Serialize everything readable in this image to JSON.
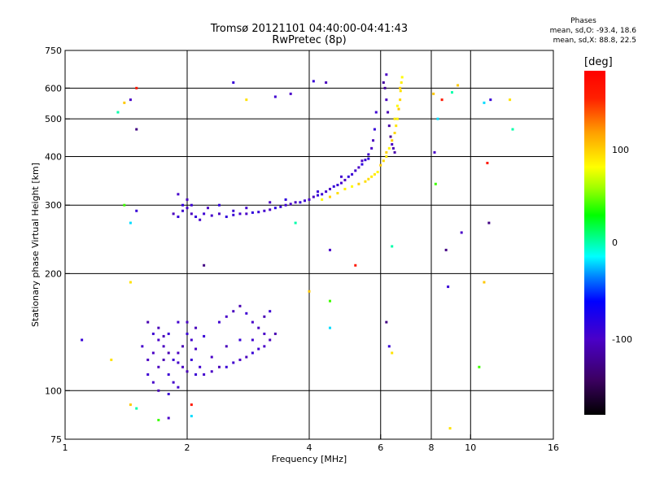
{
  "chart_data": {
    "type": "scatter",
    "title": "Tromsø 20121101 04:40:00-04:41:43",
    "subtitle": "RwPretec (8p)",
    "xlabel": "Frequency [MHz]",
    "ylabel": "Stationary phase Virtual Height [km]",
    "x_scale": "log",
    "y_scale": "log",
    "xlim": [
      1,
      16
    ],
    "ylim": [
      75,
      750
    ],
    "x_ticks": [
      1,
      2,
      4,
      6,
      8,
      10,
      16
    ],
    "y_ticks": [
      75,
      100,
      200,
      300,
      400,
      500,
      600,
      750
    ],
    "x_gridlines": [
      2,
      4,
      6,
      8,
      10
    ],
    "y_gridlines": [
      100,
      200,
      300,
      400,
      500,
      600
    ],
    "grid": true,
    "colorbar": {
      "label": "[deg]",
      "range": [
        -180,
        180
      ],
      "ticks": [
        100,
        0,
        -100
      ]
    },
    "phases": {
      "title": "Phases",
      "line_o": "mean, sd,O: -93.4, 18.6",
      "line_x": "mean, sd,X: 88.8, 22.5"
    },
    "series": [
      {
        "description": "F-layer O trace (blue/purple, phase ≈ -100°)",
        "phase_deg": -95,
        "points": [
          [
            1.85,
            285
          ],
          [
            1.9,
            280
          ],
          [
            1.95,
            290
          ],
          [
            2.0,
            295
          ],
          [
            2.05,
            285
          ],
          [
            2.1,
            280
          ],
          [
            2.2,
            285
          ],
          [
            2.3,
            282
          ],
          [
            2.4,
            285
          ],
          [
            2.5,
            280
          ],
          [
            2.6,
            283
          ],
          [
            2.7,
            285
          ],
          [
            2.8,
            285
          ],
          [
            2.9,
            287
          ],
          [
            3.0,
            288
          ],
          [
            3.1,
            290
          ],
          [
            3.2,
            292
          ],
          [
            3.3,
            295
          ],
          [
            3.4,
            297
          ],
          [
            3.5,
            300
          ],
          [
            3.6,
            302
          ],
          [
            3.7,
            305
          ],
          [
            3.8,
            305
          ],
          [
            3.9,
            308
          ],
          [
            4.0,
            310
          ],
          [
            4.1,
            315
          ],
          [
            4.2,
            318
          ],
          [
            4.3,
            320
          ],
          [
            4.4,
            325
          ],
          [
            4.5,
            330
          ],
          [
            4.6,
            335
          ],
          [
            4.7,
            338
          ],
          [
            4.8,
            342
          ],
          [
            4.9,
            348
          ],
          [
            5.0,
            355
          ],
          [
            5.1,
            360
          ],
          [
            5.2,
            368
          ],
          [
            5.3,
            375
          ],
          [
            5.4,
            382
          ],
          [
            5.5,
            392
          ],
          [
            5.6,
            405
          ],
          [
            5.7,
            420
          ],
          [
            5.75,
            440
          ],
          [
            5.8,
            470
          ],
          [
            5.85,
            520
          ],
          [
            1.9,
            320
          ],
          [
            2.0,
            310
          ],
          [
            1.95,
            300
          ],
          [
            2.05,
            300
          ],
          [
            2.15,
            275
          ],
          [
            2.25,
            295
          ],
          [
            2.4,
            300
          ],
          [
            2.6,
            290
          ],
          [
            2.8,
            295
          ],
          [
            3.2,
            305
          ],
          [
            3.5,
            310
          ],
          [
            4.2,
            325
          ],
          [
            4.8,
            355
          ],
          [
            5.4,
            390
          ],
          [
            5.6,
            395
          ],
          [
            4.1,
            625
          ],
          [
            3.3,
            570
          ],
          [
            3.6,
            580
          ],
          [
            4.4,
            620
          ]
        ]
      },
      {
        "description": "F-layer X trace (yellow/orange, phase ≈ +90°)",
        "phase_deg": 90,
        "points": [
          [
            4.3,
            310
          ],
          [
            4.5,
            315
          ],
          [
            4.7,
            322
          ],
          [
            4.9,
            330
          ],
          [
            5.1,
            335
          ],
          [
            5.3,
            340
          ],
          [
            5.5,
            345
          ],
          [
            5.7,
            355
          ],
          [
            5.9,
            365
          ],
          [
            6.0,
            380
          ],
          [
            6.1,
            390
          ],
          [
            6.2,
            400
          ],
          [
            6.3,
            420
          ],
          [
            6.4,
            440
          ],
          [
            6.5,
            460
          ],
          [
            6.55,
            480
          ],
          [
            6.6,
            500
          ],
          [
            6.65,
            530
          ],
          [
            6.7,
            560
          ],
          [
            6.72,
            590
          ],
          [
            6.75,
            620
          ],
          [
            6.78,
            640
          ],
          [
            6.2,
            410
          ],
          [
            6.35,
            450
          ],
          [
            6.5,
            500
          ],
          [
            6.6,
            540
          ],
          [
            6.7,
            600
          ],
          [
            5.6,
            350
          ],
          [
            5.8,
            360
          ]
        ]
      },
      {
        "description": "F-layer O upper branch near 6.2-6.5 MHz (purple)",
        "phase_deg": -110,
        "points": [
          [
            6.15,
            600
          ],
          [
            6.2,
            560
          ],
          [
            6.25,
            520
          ],
          [
            6.3,
            480
          ],
          [
            6.35,
            450
          ],
          [
            6.4,
            430
          ],
          [
            6.45,
            420
          ],
          [
            6.5,
            410
          ],
          [
            6.1,
            620
          ],
          [
            6.2,
            650
          ]
        ]
      },
      {
        "description": "E-layer cluster (blue)",
        "phase_deg": -100,
        "points": [
          [
            1.6,
            150
          ],
          [
            1.65,
            140
          ],
          [
            1.7,
            135
          ],
          [
            1.75,
            130
          ],
          [
            1.8,
            125
          ],
          [
            1.85,
            120
          ],
          [
            1.9,
            118
          ],
          [
            1.95,
            115
          ],
          [
            2.0,
            112
          ],
          [
            2.1,
            110
          ],
          [
            2.2,
            110
          ],
          [
            2.3,
            112
          ],
          [
            2.4,
            115
          ],
          [
            2.5,
            115
          ],
          [
            2.6,
            118
          ],
          [
            2.7,
            120
          ],
          [
            2.8,
            122
          ],
          [
            2.9,
            125
          ],
          [
            3.0,
            128
          ],
          [
            3.1,
            130
          ],
          [
            3.2,
            135
          ],
          [
            3.3,
            140
          ],
          [
            1.6,
            110
          ],
          [
            1.65,
            105
          ],
          [
            1.7,
            115
          ],
          [
            1.75,
            120
          ],
          [
            1.8,
            110
          ],
          [
            1.85,
            105
          ],
          [
            1.9,
            125
          ],
          [
            1.95,
            130
          ],
          [
            2.0,
            140
          ],
          [
            2.05,
            135
          ],
          [
            2.1,
            128
          ],
          [
            1.7,
            145
          ],
          [
            1.8,
            140
          ],
          [
            1.9,
            150
          ],
          [
            2.0,
            150
          ],
          [
            2.1,
            145
          ],
          [
            2.2,
            138
          ],
          [
            2.4,
            150
          ],
          [
            2.5,
            155
          ],
          [
            2.6,
            160
          ],
          [
            2.7,
            165
          ],
          [
            2.8,
            158
          ],
          [
            2.9,
            150
          ],
          [
            3.0,
            145
          ],
          [
            3.1,
            155
          ],
          [
            3.2,
            160
          ],
          [
            1.55,
            130
          ],
          [
            1.6,
            120
          ],
          [
            1.7,
            100
          ],
          [
            1.8,
            98
          ],
          [
            1.9,
            102
          ],
          [
            1.65,
            125
          ],
          [
            1.75,
            138
          ],
          [
            2.05,
            120
          ],
          [
            2.15,
            115
          ],
          [
            2.3,
            122
          ],
          [
            2.5,
            130
          ],
          [
            2.7,
            135
          ],
          [
            2.9,
            135
          ],
          [
            3.1,
            140
          ]
        ]
      },
      {
        "description": "scattered background points (various phases)",
        "phase_deg": null,
        "points": [
          [
            1.1,
            135
          ],
          [
            1.3,
            120
          ],
          [
            1.35,
            520
          ],
          [
            1.4,
            550
          ],
          [
            1.45,
            560
          ],
          [
            1.4,
            300
          ],
          [
            1.45,
            270
          ],
          [
            1.5,
            600
          ],
          [
            1.5,
            470
          ],
          [
            1.5,
            290
          ],
          [
            1.45,
            190
          ],
          [
            1.5,
            90
          ],
          [
            1.45,
            92
          ],
          [
            1.8,
            85
          ],
          [
            1.7,
            84
          ],
          [
            2.05,
            86
          ],
          [
            2.05,
            92
          ],
          [
            2.2,
            210
          ],
          [
            2.6,
            620
          ],
          [
            2.8,
            560
          ],
          [
            3.7,
            270
          ],
          [
            4.0,
            180
          ],
          [
            4.5,
            230
          ],
          [
            4.5,
            170
          ],
          [
            4.5,
            145
          ],
          [
            5.2,
            210
          ],
          [
            6.2,
            150
          ],
          [
            6.3,
            130
          ],
          [
            6.4,
            125
          ],
          [
            6.4,
            235
          ],
          [
            8.1,
            580
          ],
          [
            8.15,
            410
          ],
          [
            8.2,
            340
          ],
          [
            8.3,
            500
          ],
          [
            8.5,
            560
          ],
          [
            8.7,
            230
          ],
          [
            8.8,
            185
          ],
          [
            8.9,
            80
          ],
          [
            9.0,
            585
          ],
          [
            9.3,
            610
          ],
          [
            9.5,
            255
          ],
          [
            10.5,
            115
          ],
          [
            10.8,
            550
          ],
          [
            11.0,
            385
          ],
          [
            11.1,
            270
          ],
          [
            11.2,
            560
          ],
          [
            12.5,
            560
          ],
          [
            12.7,
            470
          ],
          [
            10.8,
            190
          ]
        ]
      }
    ]
  }
}
